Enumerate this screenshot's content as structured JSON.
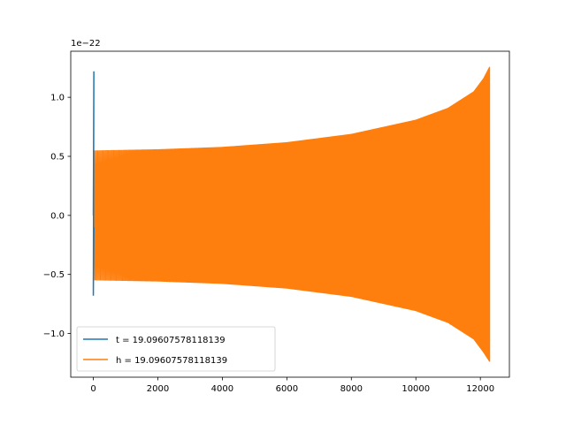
{
  "chart_data": {
    "type": "line",
    "title": "",
    "xlabel": "",
    "ylabel": "",
    "y_offset_text": "1e−22",
    "xlim": [
      -700,
      12900
    ],
    "ylim": [
      -1.37,
      1.39
    ],
    "x_ticks": [
      {
        "value": 0,
        "label": "0"
      },
      {
        "value": 2000,
        "label": "2000"
      },
      {
        "value": 4000,
        "label": "4000"
      },
      {
        "value": 6000,
        "label": "6000"
      },
      {
        "value": 8000,
        "label": "8000"
      },
      {
        "value": 10000,
        "label": "10000"
      },
      {
        "value": 12000,
        "label": "12000"
      }
    ],
    "y_ticks": [
      {
        "value": -1.0,
        "label": "−1.0"
      },
      {
        "value": -0.5,
        "label": "−0.5"
      },
      {
        "value": 0.0,
        "label": "0.0"
      },
      {
        "value": 0.5,
        "label": "0.5"
      },
      {
        "value": 1.0,
        "label": "1.0"
      }
    ],
    "grid": false,
    "legend_position": "lower-left",
    "series": [
      {
        "name": "t = 19.09607578118139",
        "color": "#1f77b4",
        "description_points": {
          "x": [
            0,
            0,
            0,
            0
          ],
          "y": [
            0.0,
            1.22,
            -0.68,
            -0.1
          ]
        }
      },
      {
        "name": "h = 19.09607578118139",
        "color": "#ff7f0e",
        "envelope": {
          "x": [
            0,
            2000,
            4000,
            6000,
            8000,
            10000,
            11000,
            11800,
            12100,
            12290
          ],
          "upper": [
            0.55,
            0.56,
            0.58,
            0.62,
            0.69,
            0.81,
            0.91,
            1.05,
            1.16,
            1.26
          ],
          "lower": [
            -0.55,
            -0.56,
            -0.58,
            -0.62,
            -0.69,
            -0.81,
            -0.91,
            -1.05,
            -1.16,
            -1.24
          ]
        },
        "x_end": 12290
      }
    ]
  }
}
